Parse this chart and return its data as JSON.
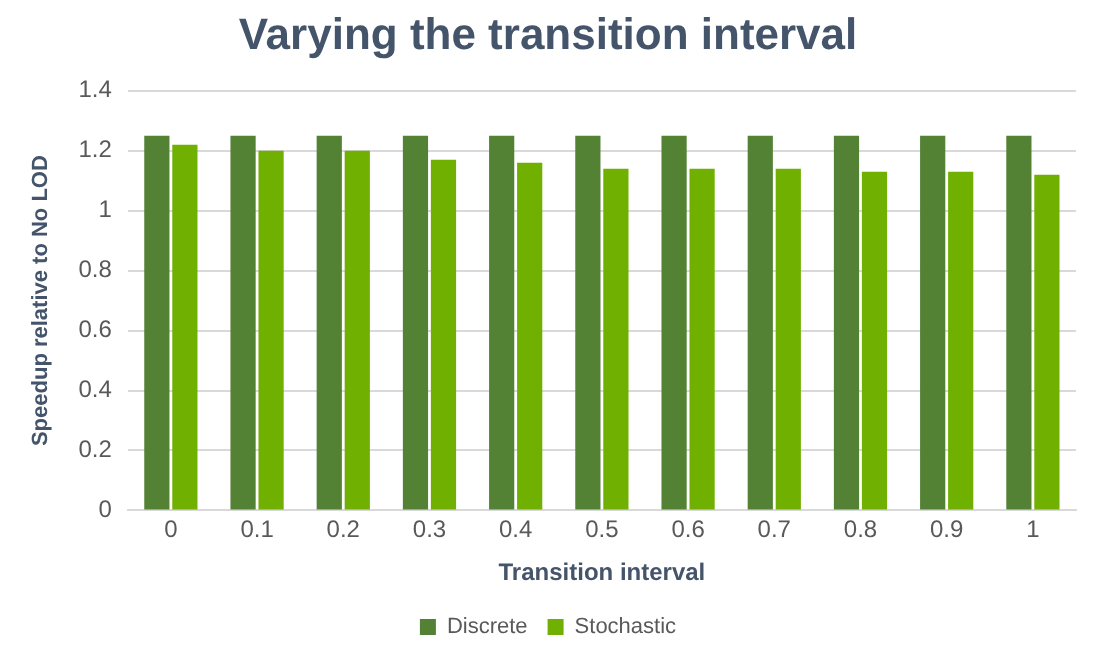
{
  "chart_data": {
    "type": "bar",
    "title": "Varying the transition interval",
    "xlabel": "Transition interval",
    "ylabel": "Speedup relative to No LOD",
    "categories": [
      "0",
      "0.1",
      "0.2",
      "0.3",
      "0.4",
      "0.5",
      "0.6",
      "0.7",
      "0.8",
      "0.9",
      "1"
    ],
    "series": [
      {
        "name": "Discrete",
        "color": "#548235",
        "values": [
          1.25,
          1.25,
          1.25,
          1.25,
          1.25,
          1.25,
          1.25,
          1.25,
          1.25,
          1.25,
          1.25
        ]
      },
      {
        "name": "Stochastic",
        "color": "#70b000",
        "values": [
          1.22,
          1.2,
          1.2,
          1.17,
          1.16,
          1.14,
          1.14,
          1.14,
          1.13,
          1.13,
          1.12
        ]
      }
    ],
    "ylim": [
      0,
      1.4
    ],
    "yticks": [
      0,
      0.2,
      0.4,
      0.6,
      0.8,
      1,
      1.2,
      1.4
    ],
    "grid": "y",
    "legend": "bottom"
  }
}
